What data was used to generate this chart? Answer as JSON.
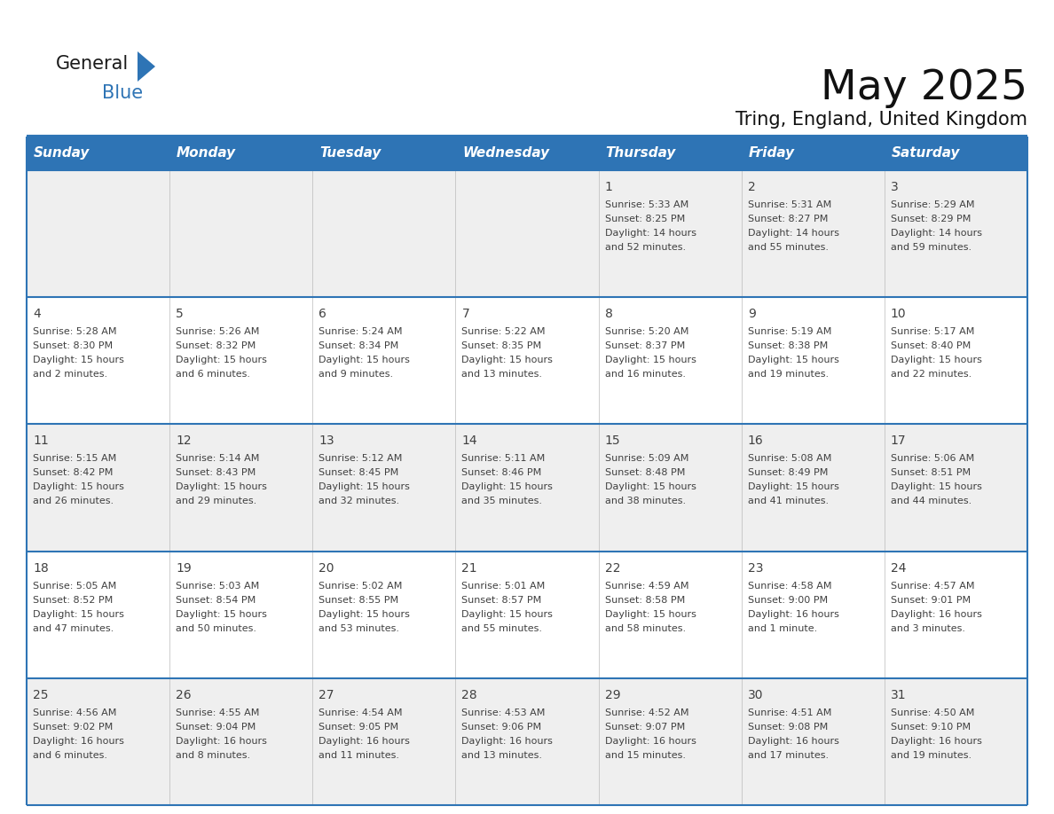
{
  "title": "May 2025",
  "subtitle": "Tring, England, United Kingdom",
  "header_bg": "#2E74B5",
  "header_text_color": "#FFFFFF",
  "day_names": [
    "Sunday",
    "Monday",
    "Tuesday",
    "Wednesday",
    "Thursday",
    "Friday",
    "Saturday"
  ],
  "row_bg_even": "#EFEFEF",
  "row_bg_odd": "#FFFFFF",
  "border_color": "#2E74B5",
  "text_color": "#404040",
  "title_fontsize": 34,
  "subtitle_fontsize": 15,
  "header_fontsize": 11,
  "day_num_fontsize": 10,
  "cell_text_fontsize": 8,
  "logo_general_color": "#1a1a1a",
  "logo_blue_color": "#2E74B5",
  "logo_triangle_color": "#2E74B5",
  "days": [
    {
      "day": 1,
      "col": 4,
      "row": 0,
      "sunrise": "5:33 AM",
      "sunset": "8:25 PM",
      "daylight": "14 hours and 52 minutes"
    },
    {
      "day": 2,
      "col": 5,
      "row": 0,
      "sunrise": "5:31 AM",
      "sunset": "8:27 PM",
      "daylight": "14 hours and 55 minutes"
    },
    {
      "day": 3,
      "col": 6,
      "row": 0,
      "sunrise": "5:29 AM",
      "sunset": "8:29 PM",
      "daylight": "14 hours and 59 minutes"
    },
    {
      "day": 4,
      "col": 0,
      "row": 1,
      "sunrise": "5:28 AM",
      "sunset": "8:30 PM",
      "daylight": "15 hours and 2 minutes"
    },
    {
      "day": 5,
      "col": 1,
      "row": 1,
      "sunrise": "5:26 AM",
      "sunset": "8:32 PM",
      "daylight": "15 hours and 6 minutes"
    },
    {
      "day": 6,
      "col": 2,
      "row": 1,
      "sunrise": "5:24 AM",
      "sunset": "8:34 PM",
      "daylight": "15 hours and 9 minutes"
    },
    {
      "day": 7,
      "col": 3,
      "row": 1,
      "sunrise": "5:22 AM",
      "sunset": "8:35 PM",
      "daylight": "15 hours and 13 minutes"
    },
    {
      "day": 8,
      "col": 4,
      "row": 1,
      "sunrise": "5:20 AM",
      "sunset": "8:37 PM",
      "daylight": "15 hours and 16 minutes"
    },
    {
      "day": 9,
      "col": 5,
      "row": 1,
      "sunrise": "5:19 AM",
      "sunset": "8:38 PM",
      "daylight": "15 hours and 19 minutes"
    },
    {
      "day": 10,
      "col": 6,
      "row": 1,
      "sunrise": "5:17 AM",
      "sunset": "8:40 PM",
      "daylight": "15 hours and 22 minutes"
    },
    {
      "day": 11,
      "col": 0,
      "row": 2,
      "sunrise": "5:15 AM",
      "sunset": "8:42 PM",
      "daylight": "15 hours and 26 minutes"
    },
    {
      "day": 12,
      "col": 1,
      "row": 2,
      "sunrise": "5:14 AM",
      "sunset": "8:43 PM",
      "daylight": "15 hours and 29 minutes"
    },
    {
      "day": 13,
      "col": 2,
      "row": 2,
      "sunrise": "5:12 AM",
      "sunset": "8:45 PM",
      "daylight": "15 hours and 32 minutes"
    },
    {
      "day": 14,
      "col": 3,
      "row": 2,
      "sunrise": "5:11 AM",
      "sunset": "8:46 PM",
      "daylight": "15 hours and 35 minutes"
    },
    {
      "day": 15,
      "col": 4,
      "row": 2,
      "sunrise": "5:09 AM",
      "sunset": "8:48 PM",
      "daylight": "15 hours and 38 minutes"
    },
    {
      "day": 16,
      "col": 5,
      "row": 2,
      "sunrise": "5:08 AM",
      "sunset": "8:49 PM",
      "daylight": "15 hours and 41 minutes"
    },
    {
      "day": 17,
      "col": 6,
      "row": 2,
      "sunrise": "5:06 AM",
      "sunset": "8:51 PM",
      "daylight": "15 hours and 44 minutes"
    },
    {
      "day": 18,
      "col": 0,
      "row": 3,
      "sunrise": "5:05 AM",
      "sunset": "8:52 PM",
      "daylight": "15 hours and 47 minutes"
    },
    {
      "day": 19,
      "col": 1,
      "row": 3,
      "sunrise": "5:03 AM",
      "sunset": "8:54 PM",
      "daylight": "15 hours and 50 minutes"
    },
    {
      "day": 20,
      "col": 2,
      "row": 3,
      "sunrise": "5:02 AM",
      "sunset": "8:55 PM",
      "daylight": "15 hours and 53 minutes"
    },
    {
      "day": 21,
      "col": 3,
      "row": 3,
      "sunrise": "5:01 AM",
      "sunset": "8:57 PM",
      "daylight": "15 hours and 55 minutes"
    },
    {
      "day": 22,
      "col": 4,
      "row": 3,
      "sunrise": "4:59 AM",
      "sunset": "8:58 PM",
      "daylight": "15 hours and 58 minutes"
    },
    {
      "day": 23,
      "col": 5,
      "row": 3,
      "sunrise": "4:58 AM",
      "sunset": "9:00 PM",
      "daylight": "16 hours and 1 minute"
    },
    {
      "day": 24,
      "col": 6,
      "row": 3,
      "sunrise": "4:57 AM",
      "sunset": "9:01 PM",
      "daylight": "16 hours and 3 minutes"
    },
    {
      "day": 25,
      "col": 0,
      "row": 4,
      "sunrise": "4:56 AM",
      "sunset": "9:02 PM",
      "daylight": "16 hours and 6 minutes"
    },
    {
      "day": 26,
      "col": 1,
      "row": 4,
      "sunrise": "4:55 AM",
      "sunset": "9:04 PM",
      "daylight": "16 hours and 8 minutes"
    },
    {
      "day": 27,
      "col": 2,
      "row": 4,
      "sunrise": "4:54 AM",
      "sunset": "9:05 PM",
      "daylight": "16 hours and 11 minutes"
    },
    {
      "day": 28,
      "col": 3,
      "row": 4,
      "sunrise": "4:53 AM",
      "sunset": "9:06 PM",
      "daylight": "16 hours and 13 minutes"
    },
    {
      "day": 29,
      "col": 4,
      "row": 4,
      "sunrise": "4:52 AM",
      "sunset": "9:07 PM",
      "daylight": "16 hours and 15 minutes"
    },
    {
      "day": 30,
      "col": 5,
      "row": 4,
      "sunrise": "4:51 AM",
      "sunset": "9:08 PM",
      "daylight": "16 hours and 17 minutes"
    },
    {
      "day": 31,
      "col": 6,
      "row": 4,
      "sunrise": "4:50 AM",
      "sunset": "9:10 PM",
      "daylight": "16 hours and 19 minutes"
    }
  ]
}
